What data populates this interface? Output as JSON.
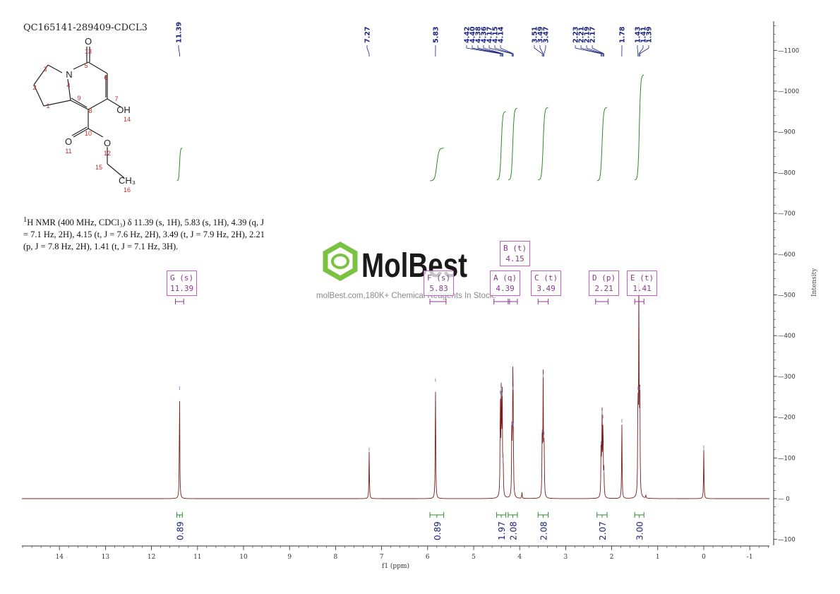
{
  "sample_id": "QC165141-289409-CDCL3",
  "nmr_description": {
    "nucleus_sup": "1",
    "text": "H NMR (400 MHz, CDCl₃) δ 11.39 (s, 1H), 5.83 (s, 1H), 4.39 (q, J = 7.1 Hz, 2H), 4.15 (t, J = 7.6 Hz, 2H), 3.49 (t, J = 7.9 Hz, 2H), 2.21 (p, J = 7.8 Hz, 2H), 1.41 (t, J = 7.1 Hz, 3H)."
  },
  "watermark": {
    "brand": "MolBest",
    "tagline": "molBest.com,180K+ Chemical Reagents In Stock."
  },
  "structure": {
    "atom_labels": [
      {
        "label": "O"
      },
      {
        "label": "N"
      },
      {
        "label": "OH"
      },
      {
        "label": "O"
      },
      {
        "label": "O"
      },
      {
        "label": "CH₃"
      }
    ],
    "atom_numbers": [
      "13",
      "3",
      "5",
      "6",
      "4",
      "2",
      "9",
      "7",
      "1",
      "8",
      "14",
      "10",
      "11",
      "12",
      "15",
      "16"
    ]
  },
  "colors": {
    "spectrum": "#7a1c1c",
    "integral": "#2e8b2e",
    "peak_label": "#1a237e",
    "multiplet_box": "#c060c0",
    "axis": "#333333",
    "watermark_green": "#7cc242"
  },
  "chart_data": {
    "type": "line",
    "title": "",
    "xlabel": "f1 (ppm)",
    "ylabel": "Intensity",
    "x_reversed": true,
    "xlim": [
      14.8,
      -1.5
    ],
    "ylim": [
      -110,
      1170
    ],
    "x_ticks": [
      14,
      13,
      12,
      11,
      10,
      9,
      8,
      7,
      6,
      5,
      4,
      3,
      2,
      1,
      0,
      -1
    ],
    "x_tick_labels": [
      "14",
      "13",
      "12",
      "11",
      "10",
      "9",
      "8",
      "7",
      "6",
      "5",
      "4",
      "3",
      "2",
      "1",
      "0",
      "-1"
    ],
    "y_ticks": [
      -100,
      0,
      100,
      200,
      300,
      400,
      500,
      600,
      700,
      800,
      900,
      1000,
      1100
    ],
    "y_tick_labels": [
      "—100",
      "— 0",
      "—100",
      "—200",
      "—300",
      "—400",
      "—500",
      "—600",
      "—700",
      "—800",
      "—900",
      "—1000",
      "—1100"
    ],
    "peaks": [
      {
        "ppm": 11.39,
        "height": 265
      },
      {
        "ppm": 7.27,
        "height": 115
      },
      {
        "ppm": 5.83,
        "height": 285
      },
      {
        "ppm": 4.42,
        "height": 255
      },
      {
        "ppm": 4.4,
        "height": 262
      },
      {
        "ppm": 4.38,
        "height": 250
      },
      {
        "ppm": 4.36,
        "height": 90
      },
      {
        "ppm": 4.17,
        "height": 178
      },
      {
        "ppm": 4.15,
        "height": 265
      },
      {
        "ppm": 4.14,
        "height": 175
      },
      {
        "ppm": 3.95,
        "height": 15
      },
      {
        "ppm": 3.51,
        "height": 160
      },
      {
        "ppm": 3.49,
        "height": 295
      },
      {
        "ppm": 3.47,
        "height": 155
      },
      {
        "ppm": 2.23,
        "height": 130
      },
      {
        "ppm": 2.21,
        "height": 205
      },
      {
        "ppm": 2.19,
        "height": 195
      },
      {
        "ppm": 2.17,
        "height": 60
      },
      {
        "ppm": 1.78,
        "height": 185
      },
      {
        "ppm": 1.43,
        "height": 265
      },
      {
        "ppm": 1.41,
        "height": 500
      },
      {
        "ppm": 1.39,
        "height": 265
      },
      {
        "ppm": 1.26,
        "height": 8
      },
      {
        "ppm": 0.0,
        "height": 120
      }
    ],
    "peak_labels": [
      "11.39",
      "7.27",
      "5.83",
      "4.42",
      "4.40",
      "4.38",
      "4.36",
      "4.17",
      "4.15",
      "4.14",
      "3.51",
      "3.49",
      "3.47",
      "2.23",
      "2.21",
      "2.19",
      "2.17",
      "1.78",
      "1.43",
      "1.41",
      "1.39"
    ],
    "peak_label_ppm": [
      11.39,
      7.27,
      5.83,
      4.42,
      4.4,
      4.38,
      4.36,
      4.17,
      4.15,
      4.14,
      3.51,
      3.49,
      3.47,
      2.23,
      2.21,
      2.19,
      2.17,
      1.78,
      1.43,
      1.41,
      1.39
    ],
    "integrals": [
      {
        "from": 11.45,
        "to": 11.33,
        "value": "0.89",
        "base": 780,
        "top": 860
      },
      {
        "from": 5.95,
        "to": 5.65,
        "value": "0.89",
        "base": 780,
        "top": 860
      },
      {
        "from": 4.5,
        "to": 4.3,
        "value": "1.97",
        "base": 782,
        "top": 950
      },
      {
        "from": 4.25,
        "to": 4.05,
        "value": "2.08",
        "base": 782,
        "top": 958
      },
      {
        "from": 3.6,
        "to": 3.38,
        "value": "2.08",
        "base": 782,
        "top": 960
      },
      {
        "from": 2.32,
        "to": 2.1,
        "value": "2.07",
        "base": 780,
        "top": 960
      },
      {
        "from": 1.5,
        "to": 1.3,
        "value": "3.00",
        "base": 782,
        "top": 1040
      }
    ],
    "multiplets": [
      {
        "label": "G (s)",
        "shift": "11.39",
        "from": 11.48,
        "to": 11.3
      },
      {
        "label": "F (s)",
        "shift": "5.83",
        "from": 5.95,
        "to": 5.6
      },
      {
        "label": "A (q)",
        "shift": "4.39",
        "from": 4.56,
        "to": 4.22
      },
      {
        "label": "B (t)",
        "shift": "4.15",
        "from": 4.25,
        "to": 4.05
      },
      {
        "label": "C (t)",
        "shift": "3.49",
        "from": 3.6,
        "to": 3.38
      },
      {
        "label": "D (p)",
        "shift": "2.21",
        "from": 2.35,
        "to": 2.08
      },
      {
        "label": "E (t)",
        "shift": "1.41",
        "from": 1.5,
        "to": 1.3
      }
    ]
  }
}
